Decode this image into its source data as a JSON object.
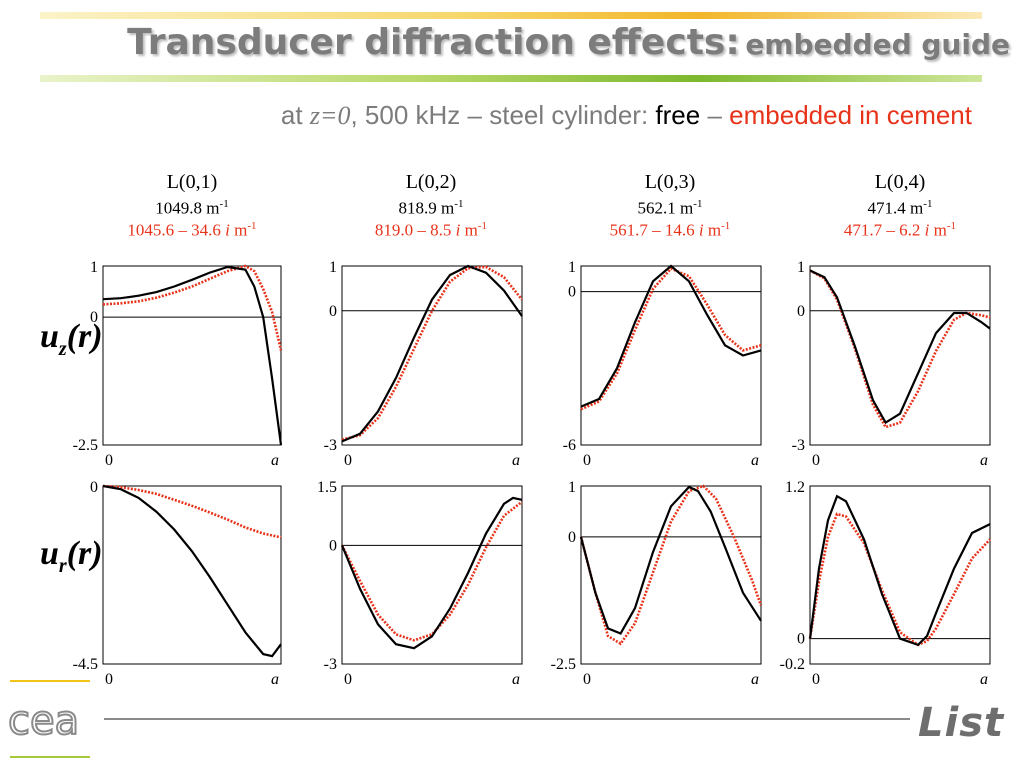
{
  "header": {
    "title_main": "Transducer diffraction effects:",
    "title_sub": "embedded guide",
    "sub_prefix": "at",
    "sub_symbol": "z=0",
    "sub_middle": ", 500 kHz – steel cylinder:",
    "sub_free": "free",
    "sub_dash": "–",
    "sub_embedded": "embedded in cement"
  },
  "columns": [
    {
      "mode": "L(0,1)",
      "free_num": "1049.8 m",
      "emb_pre": "1045.6 – 34.6 ",
      "emb_i": "i",
      "emb_unit": " m"
    },
    {
      "mode": "L(0,2)",
      "free_num": "818.9 m",
      "emb_pre": "819.0 – 8.5 ",
      "emb_i": "i",
      "emb_unit": " m"
    },
    {
      "mode": "L(0,3)",
      "free_num": "562.1 m",
      "emb_pre": "561.7 – 14.6 ",
      "emb_i": "i",
      "emb_unit": " m"
    },
    {
      "mode": "L(0,4)",
      "free_num": "471.4 m",
      "emb_pre": "471.7 – 6.2 ",
      "emb_i": "i",
      "emb_unit": " m"
    }
  ],
  "unit_exp": "-1",
  "rows": [
    {
      "label": "u",
      "sub": "z",
      "arg": "(r)"
    },
    {
      "label": "u",
      "sub": "r",
      "arg": "(r)"
    }
  ],
  "logos": {
    "left": "cea",
    "right": "List"
  },
  "colors": {
    "free": "#000000",
    "embedded": "#e8331b",
    "title": "#7c7c7c"
  },
  "chart_data": [
    {
      "type": "line",
      "row": "u_z(r)",
      "column": "L(0,1)",
      "x_ticks": [
        "0",
        "a"
      ],
      "y_ticks": [
        "1",
        "0",
        "-2.5"
      ],
      "ylim": [
        -2.5,
        1
      ],
      "xlim": [
        0,
        1
      ],
      "series": [
        {
          "x": [
            0,
            0.1,
            0.2,
            0.3,
            0.4,
            0.5,
            0.6,
            0.7,
            0.8,
            0.85,
            0.9,
            0.95,
            1.0
          ],
          "values": [
            0.35,
            0.37,
            0.42,
            0.49,
            0.6,
            0.73,
            0.87,
            0.98,
            0.93,
            0.6,
            0.0,
            -1.2,
            -2.5
          ]
        },
        {
          "x": [
            0,
            0.1,
            0.2,
            0.3,
            0.4,
            0.5,
            0.6,
            0.7,
            0.8,
            0.85,
            0.9,
            0.95,
            1.0
          ],
          "values": [
            0.25,
            0.27,
            0.31,
            0.38,
            0.48,
            0.6,
            0.75,
            0.9,
            1.0,
            0.9,
            0.55,
            0.1,
            -0.65
          ]
        }
      ]
    },
    {
      "type": "line",
      "row": "u_z(r)",
      "column": "L(0,2)",
      "x_ticks": [
        "0",
        "a"
      ],
      "y_ticks": [
        "1",
        "0",
        "-3"
      ],
      "ylim": [
        -3,
        1
      ],
      "xlim": [
        0,
        1
      ],
      "series": [
        {
          "x": [
            0,
            0.1,
            0.2,
            0.3,
            0.4,
            0.5,
            0.6,
            0.7,
            0.8,
            0.9,
            1.0
          ],
          "values": [
            -2.92,
            -2.75,
            -2.25,
            -1.5,
            -0.6,
            0.25,
            0.8,
            1.0,
            0.85,
            0.45,
            -0.12
          ]
        },
        {
          "x": [
            0,
            0.1,
            0.2,
            0.3,
            0.4,
            0.5,
            0.6,
            0.7,
            0.8,
            0.9,
            1.0
          ],
          "values": [
            -2.88,
            -2.78,
            -2.4,
            -1.7,
            -0.85,
            0.0,
            0.65,
            0.95,
            0.98,
            0.75,
            0.25
          ]
        }
      ]
    },
    {
      "type": "line",
      "row": "u_z(r)",
      "column": "L(0,3)",
      "x_ticks": [
        "0",
        "a"
      ],
      "y_ticks": [
        "1",
        "0",
        "-6"
      ],
      "ylim": [
        -6,
        1
      ],
      "xlim": [
        0,
        1
      ],
      "series": [
        {
          "x": [
            0,
            0.1,
            0.2,
            0.3,
            0.4,
            0.5,
            0.6,
            0.7,
            0.8,
            0.9,
            1.0
          ],
          "values": [
            -4.5,
            -4.2,
            -3.0,
            -1.2,
            0.4,
            1.0,
            0.4,
            -0.9,
            -2.1,
            -2.5,
            -2.3
          ]
        },
        {
          "x": [
            0,
            0.1,
            0.2,
            0.3,
            0.4,
            0.5,
            0.6,
            0.7,
            0.8,
            0.9,
            1.0
          ],
          "values": [
            -4.6,
            -4.3,
            -3.2,
            -1.5,
            0.1,
            0.9,
            0.6,
            -0.5,
            -1.7,
            -2.3,
            -2.1
          ]
        }
      ]
    },
    {
      "type": "line",
      "row": "u_z(r)",
      "column": "L(0,4)",
      "x_ticks": [
        "0",
        "a"
      ],
      "y_ticks": [
        "1",
        "0",
        "-3"
      ],
      "ylim": [
        -3,
        1
      ],
      "xlim": [
        0,
        1
      ],
      "series": [
        {
          "x": [
            0,
            0.08,
            0.15,
            0.25,
            0.35,
            0.42,
            0.5,
            0.6,
            0.7,
            0.8,
            0.87,
            0.95,
            1.0
          ],
          "values": [
            0.9,
            0.75,
            0.3,
            -0.8,
            -2.0,
            -2.5,
            -2.3,
            -1.4,
            -0.5,
            -0.05,
            -0.05,
            -0.25,
            -0.4
          ]
        },
        {
          "x": [
            0,
            0.08,
            0.15,
            0.25,
            0.35,
            0.42,
            0.5,
            0.6,
            0.7,
            0.8,
            0.87,
            0.95,
            1.0
          ],
          "values": [
            0.9,
            0.72,
            0.25,
            -0.85,
            -2.1,
            -2.6,
            -2.5,
            -1.8,
            -0.9,
            -0.2,
            -0.05,
            -0.1,
            -0.15
          ]
        }
      ]
    },
    {
      "type": "line",
      "row": "u_r(r)",
      "column": "L(0,1)",
      "x_ticks": [
        "0",
        "a"
      ],
      "y_ticks": [
        "0",
        "-4.5"
      ],
      "ylim": [
        -4.5,
        0
      ],
      "xlim": [
        0,
        1
      ],
      "series": [
        {
          "x": [
            0,
            0.1,
            0.2,
            0.3,
            0.4,
            0.5,
            0.6,
            0.7,
            0.8,
            0.9,
            0.95,
            1.0
          ],
          "values": [
            0,
            -0.08,
            -0.3,
            -0.65,
            -1.1,
            -1.65,
            -2.3,
            -3.0,
            -3.7,
            -4.25,
            -4.3,
            -4.0
          ]
        },
        {
          "x": [
            0,
            0.1,
            0.2,
            0.3,
            0.4,
            0.5,
            0.6,
            0.7,
            0.8,
            0.9,
            1.0
          ],
          "values": [
            0,
            -0.03,
            -0.1,
            -0.2,
            -0.35,
            -0.5,
            -0.67,
            -0.85,
            -1.05,
            -1.2,
            -1.3
          ]
        }
      ]
    },
    {
      "type": "line",
      "row": "u_r(r)",
      "column": "L(0,2)",
      "x_ticks": [
        "0",
        "a"
      ],
      "y_ticks": [
        "1.5",
        "0",
        "-3"
      ],
      "ylim": [
        -3,
        1.5
      ],
      "xlim": [
        0,
        1
      ],
      "series": [
        {
          "x": [
            0,
            0.1,
            0.2,
            0.3,
            0.4,
            0.5,
            0.6,
            0.7,
            0.8,
            0.9,
            0.95,
            1.0
          ],
          "values": [
            0,
            -1.1,
            -2.0,
            -2.5,
            -2.6,
            -2.3,
            -1.6,
            -0.7,
            0.3,
            1.05,
            1.2,
            1.15
          ]
        },
        {
          "x": [
            0,
            0.1,
            0.2,
            0.3,
            0.4,
            0.5,
            0.6,
            0.7,
            0.8,
            0.9,
            1.0
          ],
          "values": [
            0,
            -0.9,
            -1.75,
            -2.25,
            -2.4,
            -2.25,
            -1.75,
            -1.0,
            -0.05,
            0.75,
            1.1
          ]
        }
      ]
    },
    {
      "type": "line",
      "row": "u_r(r)",
      "column": "L(0,3)",
      "x_ticks": [
        "0",
        "a"
      ],
      "y_ticks": [
        "1",
        "0",
        "-2.5"
      ],
      "ylim": [
        -2.5,
        1
      ],
      "xlim": [
        0,
        1
      ],
      "series": [
        {
          "x": [
            0,
            0.08,
            0.15,
            0.22,
            0.3,
            0.4,
            0.5,
            0.6,
            0.65,
            0.72,
            0.8,
            0.9,
            1.0
          ],
          "values": [
            0,
            -1.1,
            -1.8,
            -1.9,
            -1.4,
            -0.3,
            0.6,
            0.98,
            0.9,
            0.5,
            -0.2,
            -1.1,
            -1.65
          ]
        },
        {
          "x": [
            0,
            0.08,
            0.15,
            0.22,
            0.3,
            0.4,
            0.5,
            0.6,
            0.68,
            0.75,
            0.85,
            0.95,
            1.0
          ],
          "values": [
            0,
            -1.1,
            -1.95,
            -2.1,
            -1.7,
            -0.7,
            0.3,
            0.9,
            1.0,
            0.75,
            0.0,
            -0.85,
            -1.35
          ]
        }
      ]
    },
    {
      "type": "line",
      "row": "u_r(r)",
      "column": "L(0,4)",
      "x_ticks": [
        "0",
        "a"
      ],
      "y_ticks": [
        "1.2",
        "0",
        "-0.2"
      ],
      "ylim": [
        -0.2,
        1.2
      ],
      "xlim": [
        0,
        1
      ],
      "series": [
        {
          "x": [
            0,
            0.05,
            0.1,
            0.15,
            0.2,
            0.3,
            0.4,
            0.5,
            0.6,
            0.65,
            0.7,
            0.8,
            0.9,
            1.0
          ],
          "values": [
            0,
            0.55,
            0.93,
            1.12,
            1.08,
            0.78,
            0.35,
            0.0,
            -0.05,
            0.02,
            0.2,
            0.55,
            0.83,
            0.9
          ]
        },
        {
          "x": [
            0,
            0.05,
            0.1,
            0.15,
            0.2,
            0.3,
            0.4,
            0.5,
            0.6,
            0.65,
            0.7,
            0.8,
            0.9,
            1.0
          ],
          "values": [
            0,
            0.45,
            0.8,
            0.98,
            0.96,
            0.75,
            0.38,
            0.05,
            -0.05,
            -0.02,
            0.08,
            0.35,
            0.63,
            0.78
          ]
        }
      ]
    }
  ]
}
